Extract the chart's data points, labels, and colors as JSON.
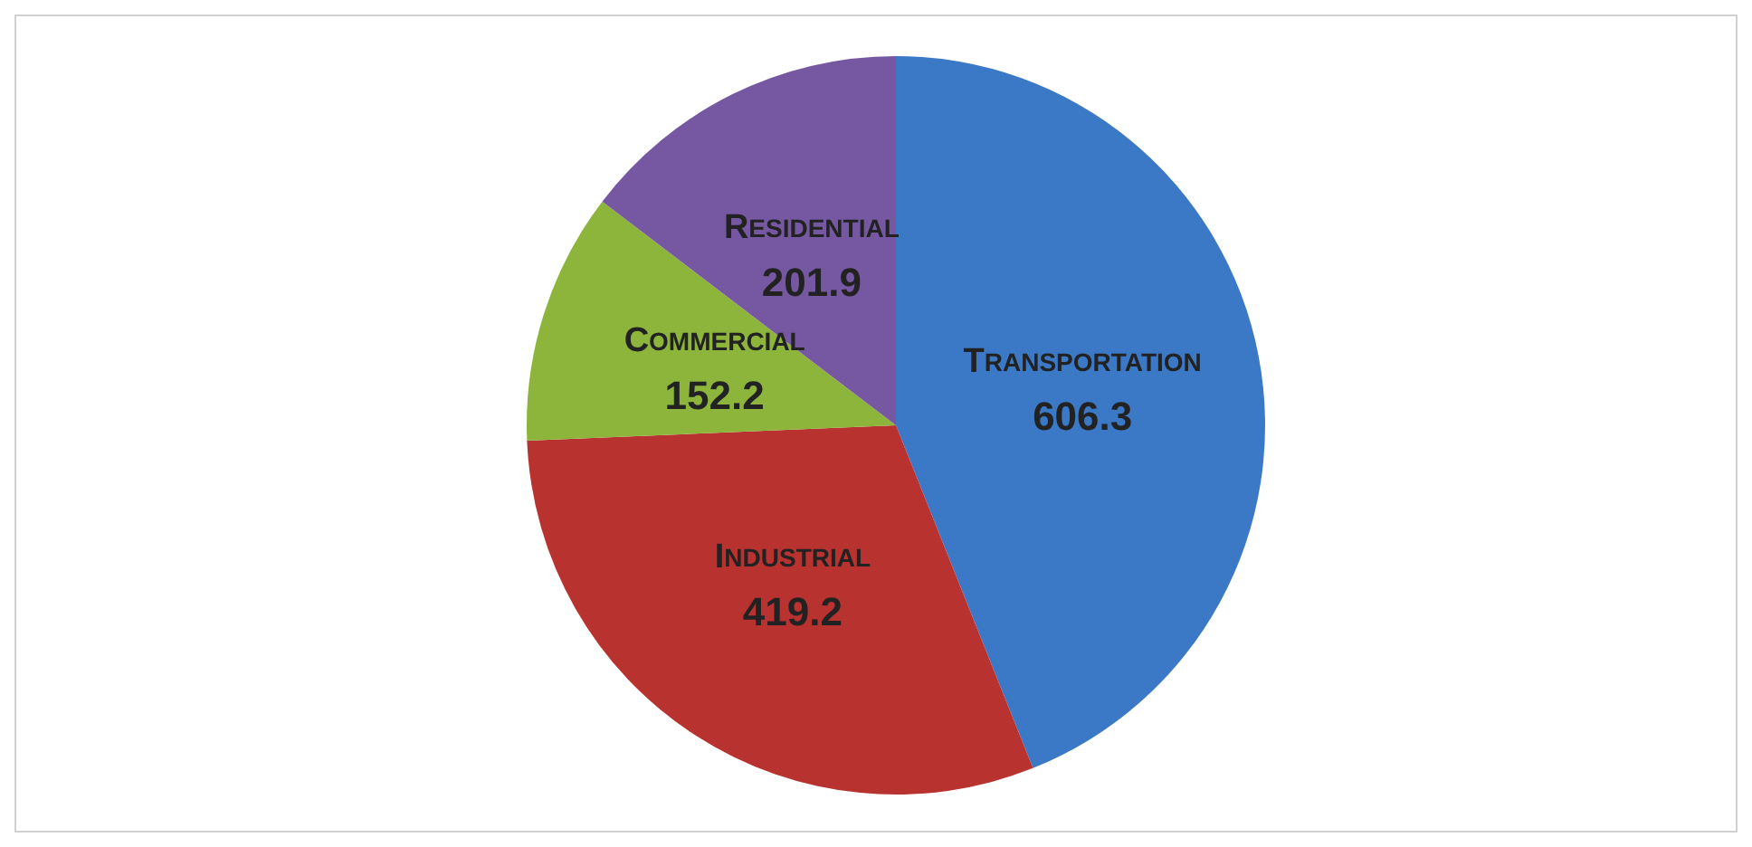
{
  "chart_data": {
    "type": "pie",
    "categories": [
      "TRANSPORTATION",
      "INDUSTRIAL",
      "COMMERCIAL",
      "RESIDENTIAL"
    ],
    "values": [
      606.3,
      419.2,
      152.2,
      201.9
    ],
    "colors": [
      "#3b79c6",
      "#b8322f",
      "#8db53b",
      "#7658a2"
    ],
    "data_labels": true,
    "legend": false
  }
}
